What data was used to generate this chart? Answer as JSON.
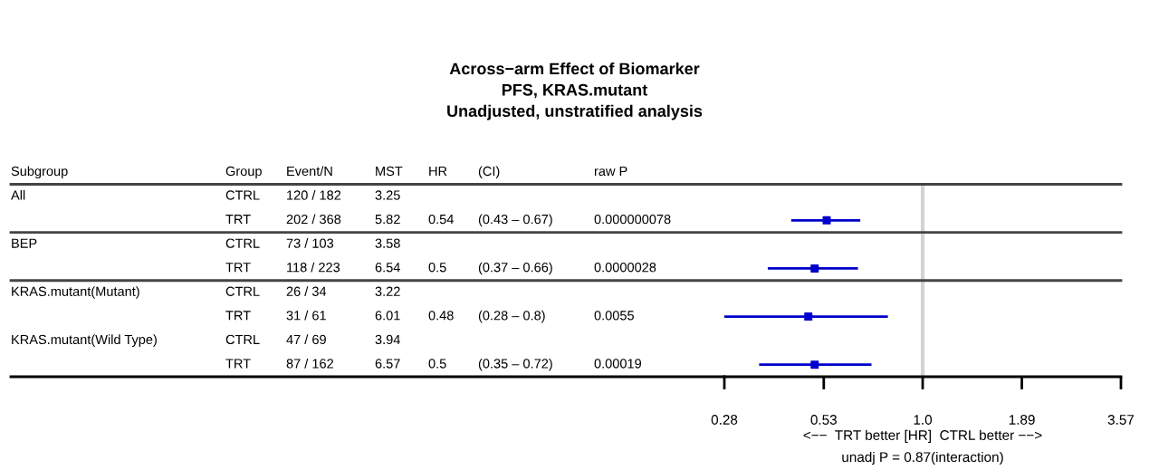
{
  "chart_data": {
    "type": "scatter",
    "orientation": "horizontal",
    "log": "x",
    "marker": "square",
    "color": "#0000cc",
    "title": "Across−arm Effect of Biomarker\nPFS, KRAS.mutant\nUnadjusted, unstratified analysis",
    "xlabel": "<−−  TRT better [HR]  CTRL better −−>",
    "categories": [
      null,
      null,
      null,
      null,
      null,
      null,
      null,
      null
    ],
    "values": [
      null,
      0.54,
      null,
      0.5,
      null,
      0.48,
      null,
      0.5
    ],
    "errors": [
      null,
      [
        0.43,
        0.67
      ],
      null,
      [
        0.37,
        0.66
      ],
      null,
      [
        0.28,
        0.8
      ],
      null,
      [
        0.35,
        0.72
      ]
    ],
    "xlim": [
      0.28,
      3.57
    ],
    "xticks": [
      0.28,
      0.53,
      {
        "value": 1,
        "label": "1.0"
      },
      1.89,
      3.57
    ],
    "ref_lines": [
      {
        "axis": "x",
        "value": 1,
        "color": "#d3d3d3"
      }
    ],
    "annotations": [
      "Subgroup",
      "Group",
      "Event/N",
      "MST",
      "HR",
      "(CI)",
      "raw P",
      "All",
      "CTRL",
      "120 / 182",
      "3.25",
      "TRT",
      "202 / 368",
      "5.82",
      "0.54",
      "(0.43 – 0.67)",
      "0.000000078",
      "BEP",
      "CTRL",
      "73 / 103",
      "3.58",
      "TRT",
      "118 / 223",
      "6.54",
      "0.5",
      "(0.37 – 0.66)",
      "0.0000028",
      "KRAS.mutant(Mutant)",
      "CTRL",
      "26 / 34",
      "3.22",
      "TRT",
      "31 / 61",
      "6.01",
      "0.48",
      "(0.28 – 0.8)",
      "0.0055",
      "KRAS.mutant(Wild Type)",
      "CTRL",
      "47 / 69",
      "3.94",
      "TRT",
      "87 / 162",
      "6.57",
      "0.5",
      "(0.35 – 0.72)",
      "0.00019",
      "unadj P = 0.87(interaction)"
    ]
  }
}
